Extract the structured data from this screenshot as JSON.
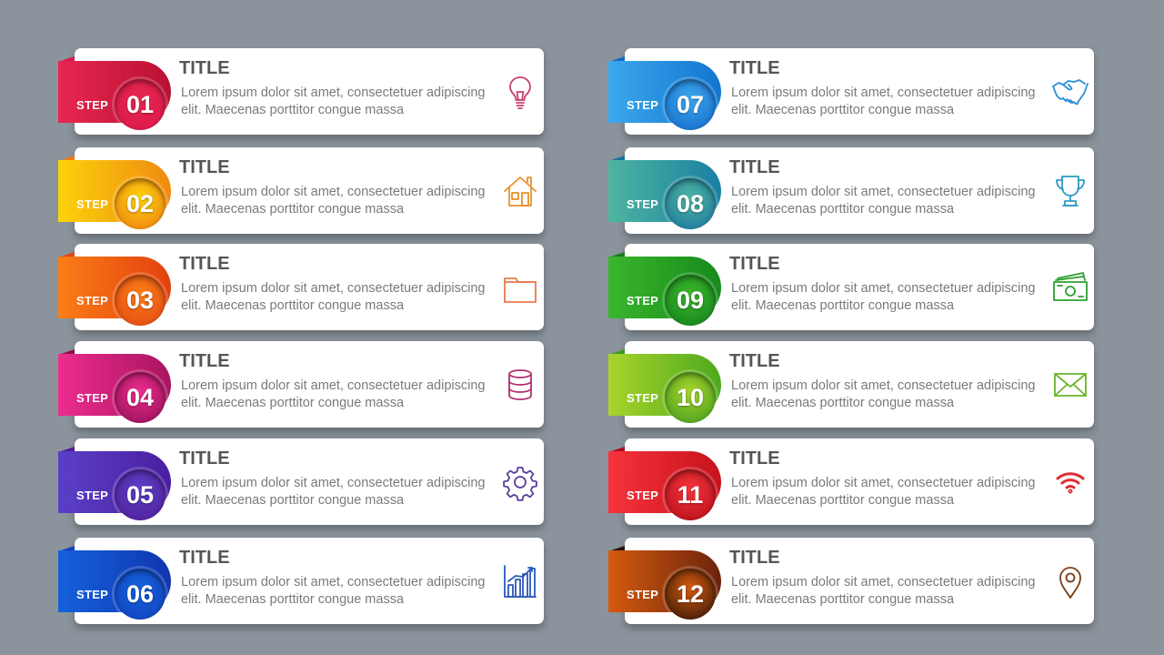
{
  "steps": [
    {
      "step_label": "STEP",
      "number": "01",
      "title": "TITLE",
      "body": "Lorem ipsum dolor sit amet, consectetuer adipiscing elit. Maecenas porttitor congue massa",
      "icon": "lightbulb-icon",
      "color": "#e8264f",
      "dark": "#b81233",
      "ring": "#d8184a"
    },
    {
      "step_label": "STEP",
      "number": "02",
      "title": "TITLE",
      "body": "Lorem ipsum dolor sit amet, consectetuer adipiscing elit. Maecenas porttitor congue massa",
      "icon": "house-icon",
      "color": "#fbd20b",
      "dark": "#f08a10",
      "ring": "#ef7a12"
    },
    {
      "step_label": "STEP",
      "number": "03",
      "title": "TITLE",
      "body": "Lorem ipsum dolor sit amet, consectetuer adipiscing elit. Maecenas porttitor congue massa",
      "icon": "folder-icon",
      "color": "#fb7d17",
      "dark": "#e2410f",
      "ring": "#e04614"
    },
    {
      "step_label": "STEP",
      "number": "04",
      "title": "TITLE",
      "body": "Lorem ipsum dolor sit amet, consectetuer adipiscing elit. Maecenas porttitor congue massa",
      "icon": "database-icon",
      "color": "#ee2c8f",
      "dark": "#a8155f",
      "ring": "#8f0f52"
    },
    {
      "step_label": "STEP",
      "number": "05",
      "title": "TITLE",
      "body": "Lorem ipsum dolor sit amet, consectetuer adipiscing elit. Maecenas porttitor congue massa",
      "icon": "gear-icon",
      "color": "#5a40c6",
      "dark": "#4a1ea0",
      "ring": "#521d98"
    },
    {
      "step_label": "STEP",
      "number": "06",
      "title": "TITLE",
      "body": "Lorem ipsum dolor sit amet, consectetuer adipiscing elit. Maecenas porttitor congue massa",
      "icon": "bar-chart-icon",
      "color": "#1461db",
      "dark": "#1036b0",
      "ring": "#1340bd"
    },
    {
      "step_label": "STEP",
      "number": "07",
      "title": "TITLE",
      "body": "Lorem ipsum dolor sit amet, consectetuer adipiscing elit. Maecenas porttitor congue massa",
      "icon": "handshake-icon",
      "color": "#3ba8ec",
      "dark": "#1275d0",
      "ring": "#1366c8"
    },
    {
      "step_label": "STEP",
      "number": "08",
      "title": "TITLE",
      "body": "Lorem ipsum dolor sit amet, consectetuer adipiscing elit. Maecenas porttitor congue massa",
      "icon": "trophy-icon",
      "color": "#4eb5a0",
      "dark": "#1a7fa3",
      "ring": "#1873a0"
    },
    {
      "step_label": "STEP",
      "number": "09",
      "title": "TITLE",
      "body": "Lorem ipsum dolor sit amet, consectetuer adipiscing elit. Maecenas porttitor congue massa",
      "icon": "money-icon",
      "color": "#3ab62c",
      "dark": "#178a1c",
      "ring": "#137e1a"
    },
    {
      "step_label": "STEP",
      "number": "10",
      "title": "TITLE",
      "body": "Lorem ipsum dolor sit amet, consectetuer adipiscing elit. Maecenas porttitor congue massa",
      "icon": "envelope-icon",
      "color": "#a8d42b",
      "dark": "#4da91f",
      "ring": "#3e9a1d"
    },
    {
      "step_label": "STEP",
      "number": "11",
      "title": "TITLE",
      "body": "Lorem ipsum dolor sit amet, consectetuer adipiscing elit. Maecenas porttitor congue massa",
      "icon": "wifi-icon",
      "color": "#f5333c",
      "dark": "#c8121c",
      "ring": "#b00d16"
    },
    {
      "step_label": "STEP",
      "number": "12",
      "title": "TITLE",
      "body": "Lorem ipsum dolor sit amet, consectetuer adipiscing elit. Maecenas porttitor congue massa",
      "icon": "location-pin-icon",
      "color": "#d45a0e",
      "dark": "#6b230c",
      "ring": "#2a1208"
    }
  ],
  "icon_colors": {
    "lightbulb-icon": "#c7406a",
    "house-icon": "#e8902a",
    "folder-icon": "#e9794a",
    "database-icon": "#b0306d",
    "gear-icon": "#5a3f9a",
    "bar-chart-icon": "#2b58b8",
    "handshake-icon": "#2a8fd8",
    "trophy-icon": "#2a9bc4",
    "money-icon": "#2e9e30",
    "envelope-icon": "#6ab52a",
    "wifi-icon": "#e02b33",
    "location-pin-icon": "#7a3e16"
  }
}
